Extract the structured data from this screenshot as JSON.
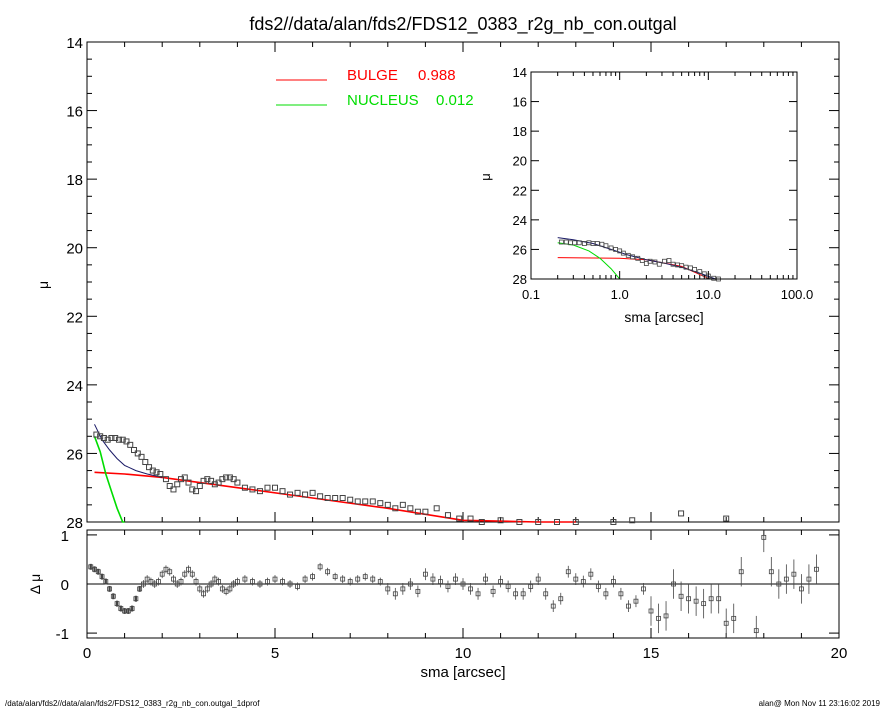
{
  "footer": {
    "left": "/data/alan/fds2//data/alan/fds2/FDS12_0383_r2g_nb_con.outgal_1dprof",
    "right": "alan@  Mon Nov 11 23:16:02 2019"
  },
  "chart_data": [
    {
      "id": "main",
      "type": "scatter",
      "title": "fds2//data/alan/fds2/FDS12_0383_r2g_nb_con.outgal",
      "xlabel": "",
      "ylabel": "μ",
      "xlim": [
        0,
        20
      ],
      "ylim": [
        28,
        14
      ],
      "y_inverted": true,
      "yticks": [
        14,
        16,
        18,
        20,
        22,
        24,
        26,
        28
      ],
      "legend_position": "top-center",
      "legend": [
        {
          "label": "BULGE",
          "value": "0.988",
          "color": "#ff0000"
        },
        {
          "label": "NUCLEUS",
          "value": "0.012",
          "color": "#00dd00"
        }
      ],
      "series": [
        {
          "name": "BULGE",
          "kind": "line",
          "color": "#ff0000",
          "x": [
            0.2,
            1,
            2,
            4,
            6,
            8,
            10,
            12,
            13
          ],
          "y": [
            26.55,
            26.6,
            26.7,
            27.0,
            27.3,
            27.6,
            27.95,
            28.3,
            28.4
          ]
        },
        {
          "name": "NUCLEUS",
          "kind": "line",
          "color": "#00dd00",
          "x": [
            0.2,
            0.35,
            0.5,
            0.65,
            0.8,
            0.95,
            1.0
          ],
          "y": [
            25.5,
            25.95,
            26.6,
            27.1,
            27.6,
            28.0,
            28.1
          ]
        },
        {
          "name": "",
          "kind": "line",
          "color": "#1a1a66",
          "x": [
            0.2,
            0.4,
            0.6,
            0.8,
            1.0,
            1.3,
            1.6,
            2.0
          ],
          "y": [
            25.15,
            25.6,
            25.9,
            26.15,
            26.35,
            26.5,
            26.6,
            26.7
          ]
        },
        {
          "name": "",
          "kind": "points",
          "color": "#444444",
          "x": [
            0.25,
            0.35,
            0.45,
            0.55,
            0.65,
            0.75,
            0.85,
            0.95,
            1.05,
            1.15,
            1.25,
            1.35,
            1.45,
            1.55,
            1.65,
            1.75,
            1.85,
            1.95,
            2.1,
            2.2,
            2.3,
            2.4,
            2.5,
            2.6,
            2.7,
            2.8,
            2.9,
            3.0,
            3.1,
            3.2,
            3.3,
            3.4,
            3.5,
            3.6,
            3.7,
            3.8,
            3.9,
            4.0,
            4.2,
            4.4,
            4.6,
            4.8,
            5.0,
            5.2,
            5.4,
            5.6,
            5.8,
            6.0,
            6.2,
            6.4,
            6.6,
            6.8,
            7.0,
            7.2,
            7.4,
            7.6,
            7.8,
            8.0,
            8.2,
            8.4,
            8.6,
            8.8,
            9.0,
            9.3,
            9.6,
            9.9,
            10.2,
            10.5,
            11.0,
            11.5,
            12.0,
            12.5,
            13.0,
            14.0,
            14.5,
            15.8,
            17.0
          ],
          "y": [
            25.45,
            25.5,
            25.55,
            25.6,
            25.55,
            25.55,
            25.6,
            25.6,
            25.65,
            25.75,
            25.9,
            26.0,
            26.1,
            26.25,
            26.4,
            26.5,
            26.55,
            26.6,
            26.75,
            26.95,
            27.05,
            26.9,
            26.75,
            26.7,
            26.85,
            27.05,
            27.1,
            26.95,
            26.8,
            26.75,
            26.8,
            26.9,
            26.85,
            26.75,
            26.7,
            26.7,
            26.75,
            26.85,
            27.0,
            27.05,
            27.1,
            27.0,
            27.0,
            27.1,
            27.2,
            27.15,
            27.2,
            27.15,
            27.25,
            27.3,
            27.3,
            27.3,
            27.35,
            27.4,
            27.4,
            27.4,
            27.45,
            27.5,
            27.6,
            27.5,
            27.6,
            27.7,
            27.7,
            27.6,
            27.8,
            27.9,
            27.9,
            28.0,
            27.95,
            28.0,
            28.0,
            28.0,
            28.0,
            28.0,
            27.95,
            27.75,
            27.9
          ]
        }
      ]
    },
    {
      "id": "residual",
      "type": "scatter",
      "xlabel": "sma [arcsec]",
      "ylabel": "Δ μ",
      "xlim": [
        0,
        20
      ],
      "ylim": [
        -1.1,
        1.1
      ],
      "xticks": [
        0,
        5,
        10,
        15,
        20
      ],
      "yticks": [
        -1,
        0,
        1
      ],
      "reference_line": 0,
      "series": [
        {
          "name": "",
          "kind": "points_with_errors",
          "color": "#444444",
          "x": [
            0.1,
            0.2,
            0.3,
            0.4,
            0.5,
            0.6,
            0.7,
            0.8,
            0.9,
            1.0,
            1.1,
            1.2,
            1.3,
            1.4,
            1.5,
            1.6,
            1.7,
            1.8,
            1.9,
            2.0,
            2.1,
            2.2,
            2.3,
            2.4,
            2.5,
            2.6,
            2.7,
            2.8,
            2.9,
            3.0,
            3.1,
            3.2,
            3.3,
            3.4,
            3.5,
            3.6,
            3.7,
            3.8,
            3.9,
            4.0,
            4.2,
            4.4,
            4.6,
            4.8,
            5.0,
            5.2,
            5.4,
            5.6,
            5.8,
            6.0,
            6.2,
            6.4,
            6.6,
            6.8,
            7.0,
            7.2,
            7.4,
            7.6,
            7.8,
            8.0,
            8.2,
            8.4,
            8.6,
            8.8,
            9.0,
            9.2,
            9.4,
            9.6,
            9.8,
            10.0,
            10.2,
            10.4,
            10.6,
            10.8,
            11.0,
            11.2,
            11.4,
            11.6,
            11.8,
            12.0,
            12.2,
            12.4,
            12.6,
            12.8,
            13.0,
            13.2,
            13.4,
            13.6,
            13.8,
            14.0,
            14.2,
            14.4,
            14.6,
            14.8,
            15.0,
            15.2,
            15.4,
            15.6,
            15.8,
            16.0,
            16.2,
            16.4,
            16.6,
            16.8,
            17.0,
            17.2,
            17.4,
            17.8,
            18.0,
            18.2,
            18.4,
            18.6,
            18.8,
            19.0,
            19.2,
            19.4
          ],
          "y": [
            0.35,
            0.3,
            0.25,
            0.15,
            0.05,
            -0.1,
            -0.25,
            -0.4,
            -0.5,
            -0.55,
            -0.55,
            -0.5,
            -0.3,
            -0.1,
            0.0,
            0.1,
            0.05,
            0.0,
            0.05,
            0.2,
            0.3,
            0.25,
            0.1,
            0.0,
            0.05,
            0.2,
            0.3,
            0.2,
            0.05,
            -0.1,
            -0.2,
            -0.1,
            0.0,
            0.1,
            0.05,
            -0.1,
            -0.15,
            -0.1,
            0.0,
            0.05,
            0.1,
            0.05,
            0.0,
            0.05,
            0.1,
            0.05,
            0.0,
            -0.05,
            0.1,
            0.15,
            0.35,
            0.25,
            0.15,
            0.1,
            0.05,
            0.1,
            0.15,
            0.1,
            0.05,
            -0.1,
            -0.2,
            -0.1,
            0.0,
            -0.15,
            0.2,
            0.1,
            0.05,
            -0.05,
            0.1,
            0.0,
            -0.1,
            -0.2,
            0.1,
            -0.15,
            0.05,
            -0.05,
            -0.2,
            -0.2,
            -0.05,
            0.1,
            -0.2,
            -0.45,
            -0.3,
            0.25,
            0.1,
            0.05,
            0.2,
            -0.05,
            -0.2,
            0.05,
            -0.2,
            -0.45,
            -0.35,
            -0.1,
            -0.55,
            -0.7,
            -0.65,
            0.0,
            -0.25,
            -0.3,
            -0.35,
            -0.4,
            -0.3,
            -0.3,
            -0.8,
            -0.7,
            0.25,
            -0.95,
            0.95,
            0.25,
            0.0,
            0.1,
            0.2,
            -0.1,
            0.1,
            0.3
          ]
        }
      ]
    },
    {
      "id": "inset",
      "type": "scatter",
      "xlabel": "sma [arcsec]",
      "ylabel": "μ",
      "x_scale": "log",
      "xlim": [
        0.1,
        100.0
      ],
      "ylim": [
        28,
        14
      ],
      "y_inverted": true,
      "xticks": [
        "0.1",
        "1.0",
        "10.0",
        "100.0"
      ],
      "yticks": [
        14,
        16,
        18,
        20,
        22,
        24,
        26,
        28
      ],
      "series": [
        {
          "name": "BULGE",
          "kind": "line",
          "color": "#ff0000",
          "x": [
            0.2,
            0.5,
            1,
            2,
            5,
            10
          ],
          "y": [
            26.55,
            26.58,
            26.6,
            26.7,
            27.15,
            27.95
          ]
        },
        {
          "name": "NUCLEUS",
          "kind": "line",
          "color": "#00dd00",
          "x": [
            0.2,
            0.3,
            0.45,
            0.6,
            0.8,
            1.0,
            1.1
          ],
          "y": [
            25.55,
            25.7,
            26.1,
            26.6,
            27.3,
            28.0,
            28.3
          ]
        },
        {
          "name": "",
          "kind": "line",
          "color": "#1a1a66",
          "x": [
            0.2,
            0.3,
            0.5,
            0.8,
            1.2,
            2.0,
            3.0,
            5.0,
            8.0,
            12.0
          ],
          "y": [
            25.2,
            25.35,
            25.6,
            26.0,
            26.35,
            26.7,
            26.9,
            27.2,
            27.6,
            28.1
          ]
        },
        {
          "name": "",
          "kind": "points",
          "color": "#444444",
          "x": [
            0.22,
            0.25,
            0.28,
            0.31,
            0.35,
            0.4,
            0.45,
            0.5,
            0.56,
            0.63,
            0.7,
            0.8,
            0.9,
            1.0,
            1.1,
            1.25,
            1.4,
            1.6,
            1.8,
            2.0,
            2.2,
            2.5,
            2.8,
            3.2,
            3.6,
            4.0,
            4.5,
            5.0,
            5.6,
            6.3,
            7.0,
            8.0,
            9.0,
            10.0,
            11.5,
            13.0,
            15.0,
            17.0
          ],
          "y": [
            25.5,
            25.5,
            25.55,
            25.55,
            25.55,
            25.6,
            25.55,
            25.6,
            25.6,
            25.65,
            25.75,
            25.9,
            26.0,
            26.1,
            26.25,
            26.4,
            26.5,
            26.6,
            26.75,
            26.95,
            26.8,
            26.85,
            27.0,
            26.8,
            26.75,
            27.0,
            27.05,
            27.1,
            27.2,
            27.25,
            27.35,
            27.5,
            27.65,
            27.8,
            27.95,
            28.0,
            28.1,
            28.1
          ]
        }
      ]
    }
  ]
}
